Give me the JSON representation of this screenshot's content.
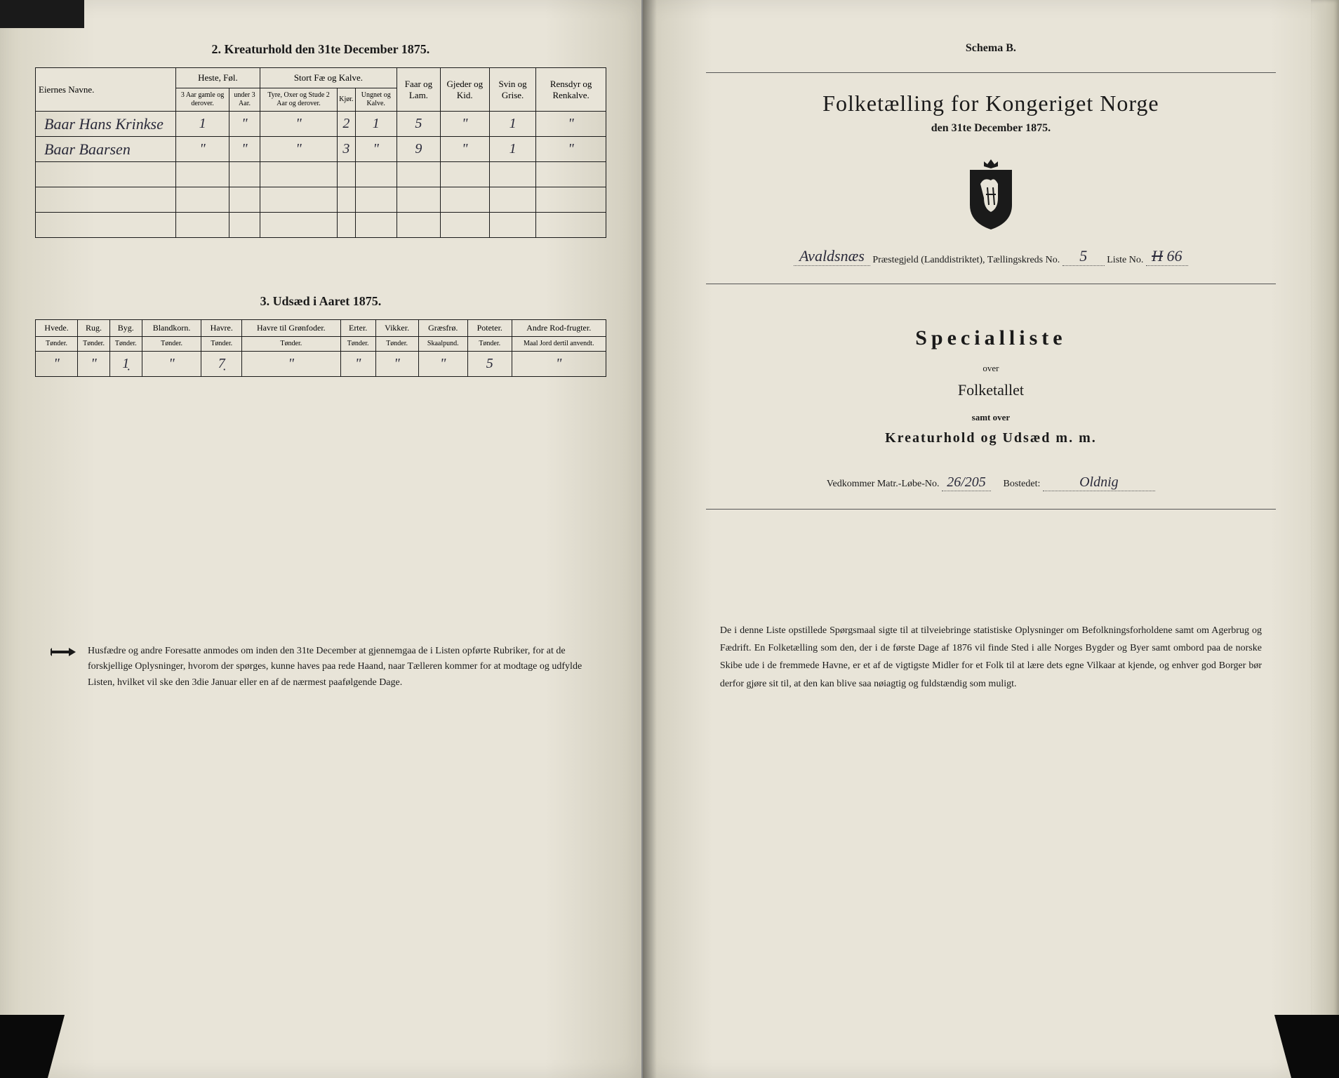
{
  "left": {
    "section2": {
      "title": "2. Kreaturhold den 31te December 1875.",
      "groupHeaders": {
        "name": "Eiernes Navne.",
        "heste": "Heste, Føl.",
        "stort": "Stort Fæ og Kalve.",
        "faar": "Faar og Lam.",
        "gjeder": "Gjeder og Kid.",
        "svin": "Svin og Grise.",
        "rensdyr": "Rensdyr og Renkalve."
      },
      "subHeaders": {
        "heste1": "3 Aar gamle og derover.",
        "heste2": "under 3 Aar.",
        "stort1": "Tyre, Oxer og Stude 2 Aar og derover.",
        "stort2": "Kjør.",
        "stort3": "Ungnet og Kalve."
      },
      "rows": [
        {
          "name": "Baar Hans Krinkse",
          "c1": "1",
          "c2": "\"",
          "c3": "\"",
          "c4": "2",
          "c5": "1",
          "c6": "5",
          "c7": "\"",
          "c8": "1",
          "c9": "\""
        },
        {
          "name": "Baar Baarsen",
          "c1": "\"",
          "c2": "\"",
          "c3": "\"",
          "c4": "3",
          "c5": "\"",
          "c6": "9",
          "c7": "\"",
          "c8": "1",
          "c9": "\""
        }
      ]
    },
    "section3": {
      "title": "3. Udsæd i Aaret 1875.",
      "headers": [
        "Hvede.",
        "Rug.",
        "Byg.",
        "Blandkorn.",
        "Havre.",
        "Havre til Grønfoder.",
        "Erter.",
        "Vikker.",
        "Græsfrø.",
        "Poteter.",
        "Andre Rod-frugter."
      ],
      "subUnit": "Tønder.",
      "subUnitGraes": "Skaalpund.",
      "subUnitRod": "Maal Jord dertil anvendt.",
      "row": [
        "\"",
        "\"",
        "1̣",
        "\"",
        "7̣",
        "\"",
        "\"",
        "\"",
        "\"",
        "5",
        "\""
      ]
    },
    "footer": "Husfædre og andre Foresatte anmodes om inden den 31te December at gjennemgaa de i Listen opførte Rubriker, for at de forskjellige Oplysninger, hvorom der spørges, kunne haves paa rede Haand, naar Tælleren kommer for at modtage og udfylde Listen, hvilket vil ske den 3die Januar eller en af de nærmest paafølgende Dage."
  },
  "right": {
    "schema": "Schema B.",
    "mainTitle": "Folketælling for Kongeriget Norge",
    "date": "den 31te December 1875.",
    "parishLine": {
      "prefix": "Avaldsnæs",
      "label1": "Præstegjeld (Landdistriktet), Tællingskreds No.",
      "kreds": "5",
      "label2": "Liste No.",
      "liste": "66",
      "listeStrike": "H"
    },
    "specialTitle": "Specialliste",
    "over": "over",
    "folketallet": "Folketallet",
    "samtOver": "samt over",
    "kreatur": "Kreaturhold og Udsæd m. m.",
    "vedkommer": {
      "label1": "Vedkommer Matr.-Løbe-No.",
      "matr": "26/205",
      "label2": "Bostedet:",
      "bosted": "Oldnig"
    },
    "footer": "De i denne Liste opstillede Spørgsmaal sigte til at tilveiebringe statistiske Oplysninger om Befolkningsforholdene samt om Agerbrug og Fædrift. En Folketælling som den, der i de første Dage af 1876 vil finde Sted i alle Norges Bygder og Byer samt ombord paa de norske Skibe ude i de fremmede Havne, er et af de vigtigste Midler for et Folk til at lære dets egne Vilkaar at kjende, og enhver god Borger bør derfor gjøre sit til, at den kan blive saa nøiagtig og fuldstændig som muligt."
  },
  "colors": {
    "ink": "#1a1a1a",
    "handwriting": "#2a2a3a",
    "paper": "#e8e4d8",
    "shadow": "#d0ccbc"
  }
}
